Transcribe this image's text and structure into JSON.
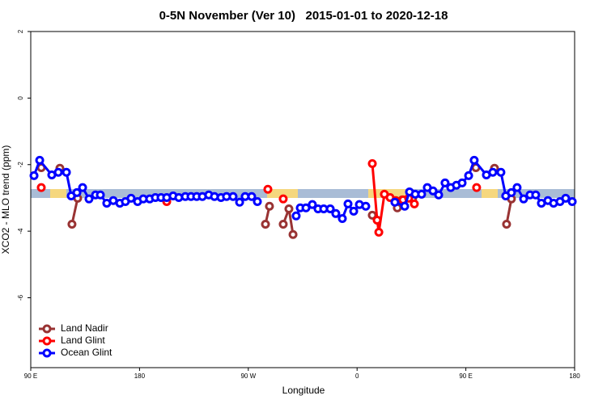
{
  "chart_data": {
    "type": "line",
    "title": "0-5N November (Ver 10)   2015-01-01 to 2020-12-18",
    "x_label": "Longitude",
    "y_label": "XCO2 - MLO trend (ppm)",
    "xlim": [
      90,
      540
    ],
    "xticks": [
      {
        "value": 90,
        "label": "90 E"
      },
      {
        "value": 180,
        "label": "180"
      },
      {
        "value": 270,
        "label": "90 W"
      },
      {
        "value": 360,
        "label": "0"
      },
      {
        "value": 450,
        "label": "90 E"
      },
      {
        "value": 540,
        "label": "180"
      }
    ],
    "ylim": [
      -8.1,
      2
    ],
    "yticks": [
      2,
      0,
      -2,
      -4,
      -6
    ],
    "legend": "bottom left",
    "series": [
      {
        "name": "Land Nadir",
        "color": "#993333",
        "x": [
          98.7,
          null,
          114.1,
          null,
          124.1,
          128.8,
          null,
          284.2,
          287.5,
          null,
          298.9,
          303.6,
          307.0,
          null,
          372.6,
          null,
          393.3,
          397.3,
          null,
          406.0,
          null,
          458.3,
          null,
          473.7,
          null,
          483.7,
          487.7
        ],
        "values": [
          -2.09,
          null,
          -2.11,
          null,
          -3.79,
          -3.01,
          null,
          -3.79,
          -3.25,
          null,
          -3.79,
          -3.33,
          -4.1,
          null,
          -3.52,
          null,
          -3.3,
          -3.06,
          null,
          -3.01,
          null,
          -2.09,
          null,
          -2.11,
          null,
          -3.79,
          -3.03
        ]
      },
      {
        "name": "Land Glint",
        "color": "#ff0000",
        "x": [
          98.7,
          null,
          202.5,
          null,
          286.2,
          null,
          298.9,
          null,
          372.6,
          376.6,
          378.0,
          382.6,
          387.3,
          392.0,
          398.0,
          402.7,
          407.4,
          null,
          458.9
        ],
        "values": [
          -2.69,
          null,
          -3.11,
          null,
          -2.74,
          null,
          -3.03,
          null,
          -1.97,
          -3.67,
          -4.03,
          -2.89,
          -2.99,
          -3.08,
          -3.06,
          -3.01,
          -3.18,
          null,
          -2.69
        ]
      },
      {
        "name": "Ocean Glint",
        "color": "#0000ff",
        "x": [
          92.7,
          97.4,
          107.4,
          112.8,
          119.5,
          123.5,
          128.2,
          132.9,
          138.2,
          143.6,
          147.6,
          152.9,
          158.3,
          163.7,
          168.3,
          173.0,
          178.4,
          183.1,
          188.4,
          193.1,
          197.8,
          202.5,
          207.8,
          212.5,
          217.9,
          222.6,
          227.3,
          232.0,
          237.3,
          242.0,
          247.4,
          252.0,
          257.4,
          262.8,
          267.4,
          272.8,
          277.5,
          null,
          309.6,
          313.0,
          317.7,
          323.0,
          327.7,
          332.4,
          337.8,
          342.4,
          347.8,
          352.5,
          357.2,
          361.9,
          367.2,
          null,
          391.3,
          399.4,
          403.4,
          408.1,
          413.4,
          418.1,
          422.8,
          427.5,
          432.8,
          437.5,
          442.2,
          446.9,
          452.3,
          456.9,
          467.0,
          472.3,
          479.0,
          483.0,
          487.7,
          492.4,
          497.8,
          503.1,
          507.8,
          512.5,
          517.9,
          522.6,
          527.9,
          532.6,
          538.0
        ],
        "values": [
          -2.33,
          -1.87,
          -2.31,
          -2.23,
          -2.23,
          -2.94,
          -2.84,
          -2.69,
          -3.03,
          -2.91,
          -2.91,
          -3.16,
          -3.08,
          -3.16,
          -3.11,
          -3.01,
          -3.11,
          -3.03,
          -3.03,
          -2.99,
          -2.99,
          -2.99,
          -2.94,
          -2.99,
          -2.96,
          -2.96,
          -2.96,
          -2.96,
          -2.91,
          -2.96,
          -2.99,
          -2.96,
          -2.96,
          -3.13,
          -2.96,
          -2.96,
          -3.11,
          null,
          -3.54,
          -3.3,
          -3.3,
          -3.2,
          -3.33,
          -3.33,
          -3.33,
          -3.47,
          -3.62,
          -3.18,
          -3.4,
          -3.2,
          -3.25,
          null,
          -3.13,
          -3.25,
          -2.82,
          -2.89,
          -2.89,
          -2.69,
          -2.79,
          -2.91,
          -2.55,
          -2.69,
          -2.62,
          -2.55,
          -2.33,
          -1.87,
          -2.31,
          -2.23,
          -2.23,
          -2.94,
          -2.84,
          -2.69,
          -3.03,
          -2.91,
          -2.91,
          -3.16,
          -3.08,
          -3.16,
          -3.11,
          -3.01,
          -3.11
        ]
      }
    ]
  }
}
